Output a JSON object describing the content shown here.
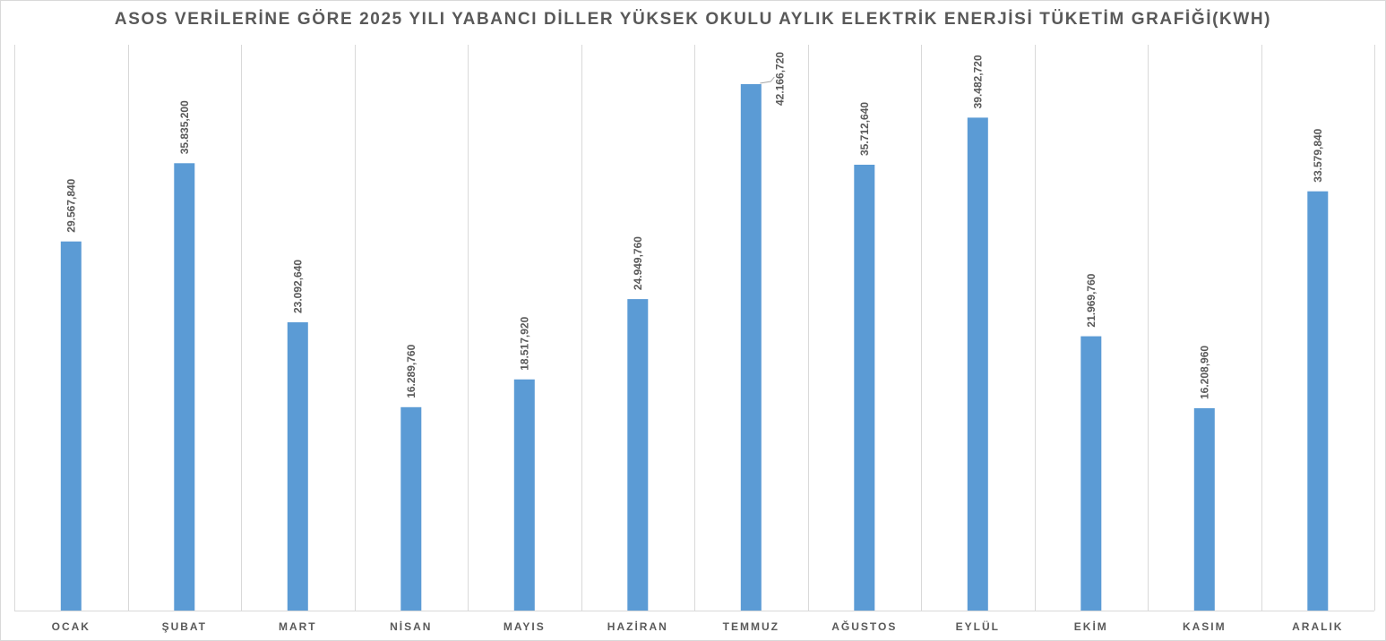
{
  "chart_data": {
    "type": "bar",
    "title": "ASOS VERİLERİNE GÖRE 2025 YILI YABANCI DİLLER YÜKSEK OKULU AYLIK ELEKTRİK ENERJİSİ TÜKETİM GRAFİĞİ(KWH)",
    "xlabel": "",
    "ylabel": "",
    "categories": [
      "OCAK",
      "ŞUBAT",
      "MART",
      "NİSAN",
      "MAYIS",
      "HAZİRAN",
      "TEMMUZ",
      "AĞUSTOS",
      "EYLÜL",
      "EKİM",
      "KASIM",
      "ARALIK"
    ],
    "values": [
      29567.84,
      35835.2,
      23092.64,
      16289.76,
      18517.92,
      24949.76,
      42166.72,
      35712.64,
      39482.72,
      21969.76,
      16208.96,
      33579.84
    ],
    "value_labels": [
      "29.567,840",
      "35.835,200",
      "23.092,640",
      "16.289,760",
      "18.517,920",
      "24.949,760",
      "42.166,720",
      "35.712,640",
      "39.482,720",
      "21.969,760",
      "16.208,960",
      "33.579,840"
    ],
    "ylim": [
      0,
      43000
    ],
    "grid": "vertical",
    "legend": "none",
    "bar_color": "#5b9bd5"
  }
}
